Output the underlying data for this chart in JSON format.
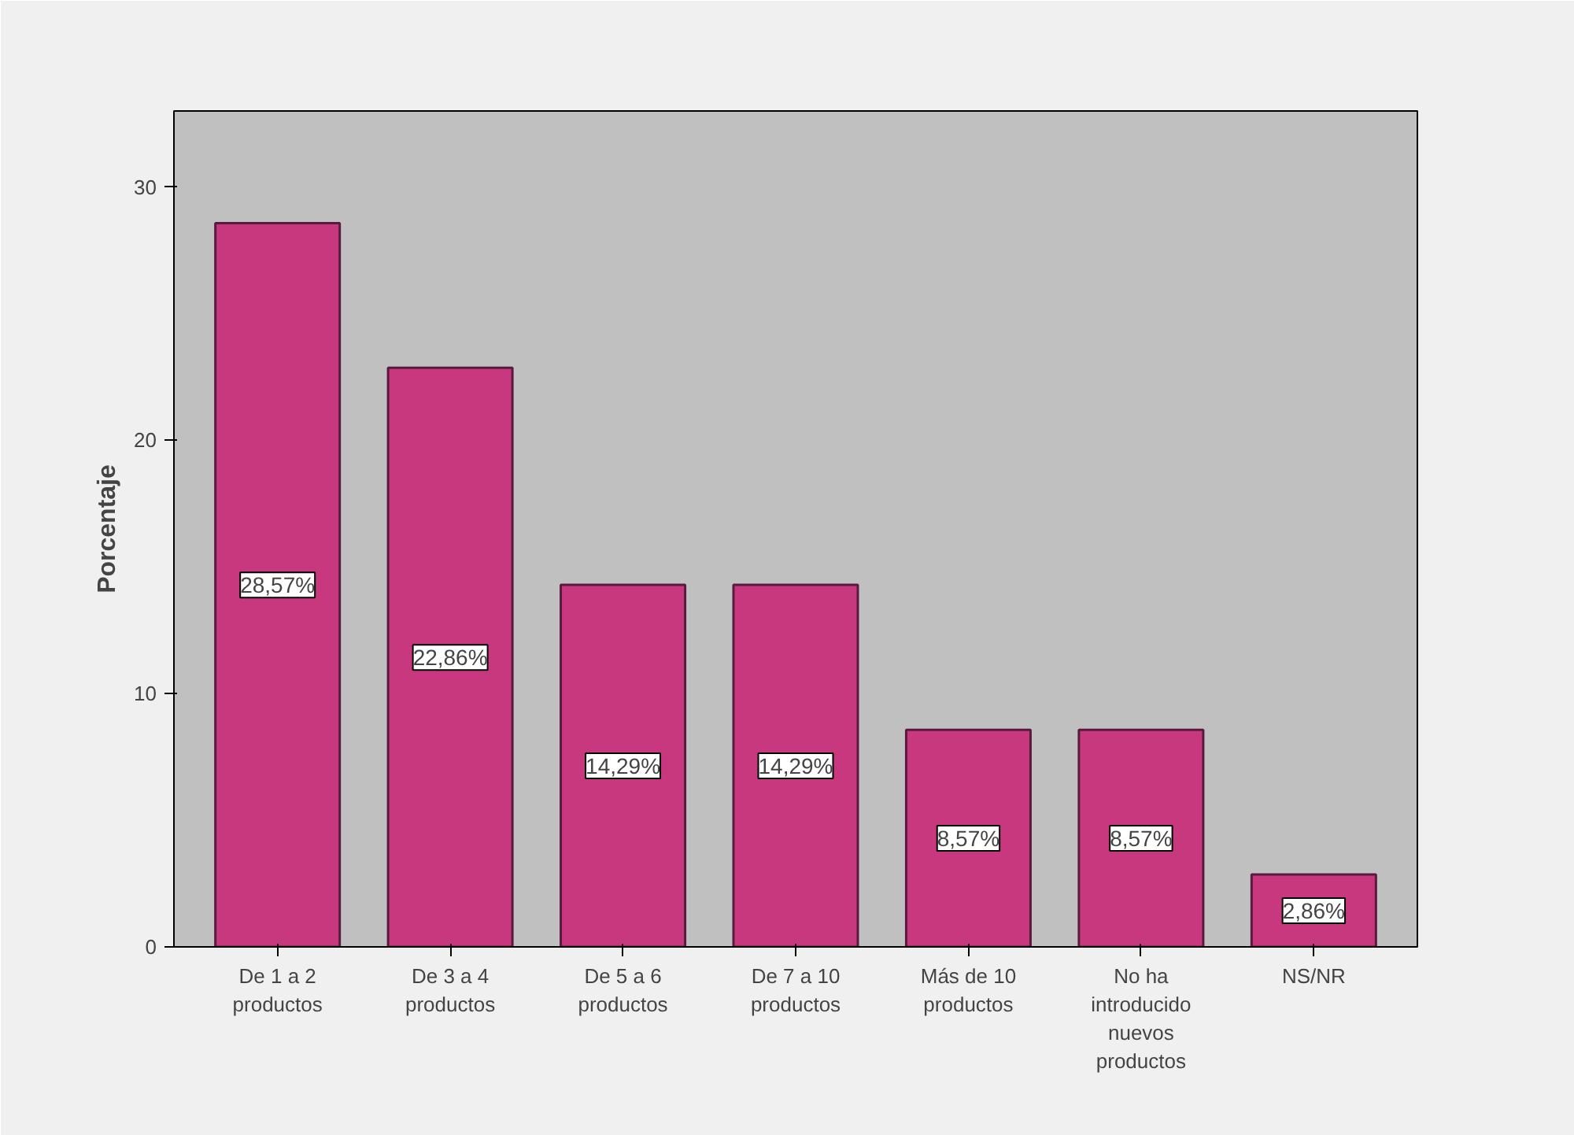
{
  "chart_data": {
    "type": "bar",
    "ylabel": "Porcentaje",
    "categories": [
      "De 1 a 2\nproductos",
      "De 3 a 4\nproductos",
      "De 5 a 6\nproductos",
      "De 7 a 10\nproductos",
      "Más de 10\nproductos",
      "No ha\nintroducido\nnuevos\nproductos",
      "NS/NR"
    ],
    "values": [
      28.57,
      22.86,
      14.29,
      14.29,
      8.57,
      8.57,
      2.86
    ],
    "value_labels": [
      "28,57%",
      "22,86%",
      "14,29%",
      "14,29%",
      "8,57%",
      "8,57%",
      "2,86%"
    ],
    "color": "#c8387f",
    "ylim": [
      0,
      33
    ],
    "yticks": [
      0,
      10,
      20,
      30
    ],
    "grid": false
  }
}
